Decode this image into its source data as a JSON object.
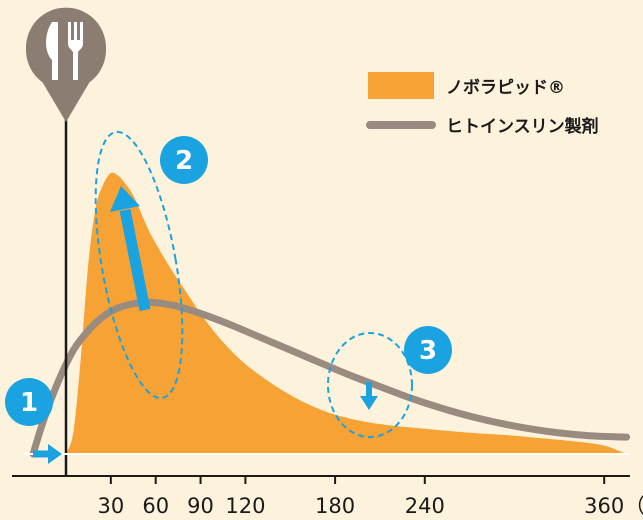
{
  "chart_data": {
    "type": "area",
    "x_unit_label": "（分）",
    "x_ticks": [
      30,
      60,
      90,
      120,
      180,
      240,
      360
    ],
    "xlim": [
      -25,
      380
    ],
    "legend_placement": "top-right",
    "series": [
      {
        "name": "ノボラピッド®",
        "kind": "area",
        "color": "#f7a234",
        "x": [
          0,
          5,
          10,
          15,
          20,
          25,
          30,
          35,
          40,
          45,
          50,
          55,
          60,
          70,
          80,
          90,
          100,
          110,
          120,
          135,
          150,
          165,
          180,
          200,
          220,
          240,
          260,
          280,
          300,
          320,
          340,
          360,
          375
        ],
        "values": [
          0,
          0.08,
          0.35,
          0.68,
          0.88,
          0.96,
          1.0,
          0.99,
          0.96,
          0.92,
          0.86,
          0.8,
          0.75,
          0.66,
          0.58,
          0.5,
          0.43,
          0.37,
          0.32,
          0.26,
          0.21,
          0.17,
          0.14,
          0.115,
          0.1,
          0.09,
          0.08,
          0.072,
          0.065,
          0.055,
          0.045,
          0.03,
          0.0
        ]
      },
      {
        "name": "ヒトインスリン製剤",
        "kind": "line",
        "color": "#9a8b80",
        "x": [
          -22,
          -15,
          -5,
          5,
          15,
          25,
          35,
          45,
          55,
          65,
          75,
          90,
          110,
          130,
          150,
          170,
          190,
          210,
          230,
          250,
          270,
          290,
          310,
          330,
          350,
          375
        ],
        "values": [
          0.0,
          0.12,
          0.26,
          0.37,
          0.44,
          0.49,
          0.52,
          0.535,
          0.54,
          0.535,
          0.525,
          0.5,
          0.46,
          0.415,
          0.37,
          0.325,
          0.28,
          0.24,
          0.2,
          0.165,
          0.135,
          0.11,
          0.09,
          0.075,
          0.065,
          0.06
        ]
      }
    ],
    "annotations": [
      {
        "label": "1",
        "color": "#1aa3e0"
      },
      {
        "label": "2",
        "color": "#1aa3e0"
      },
      {
        "label": "3",
        "color": "#1aa3e0"
      }
    ],
    "meal_marker_icon": "fork-knife-icon",
    "colors": {
      "background": "#fdf2dc",
      "accent": "#1aa3e0",
      "pin": "#8c7d73",
      "axis": "#1a1a1a"
    }
  }
}
